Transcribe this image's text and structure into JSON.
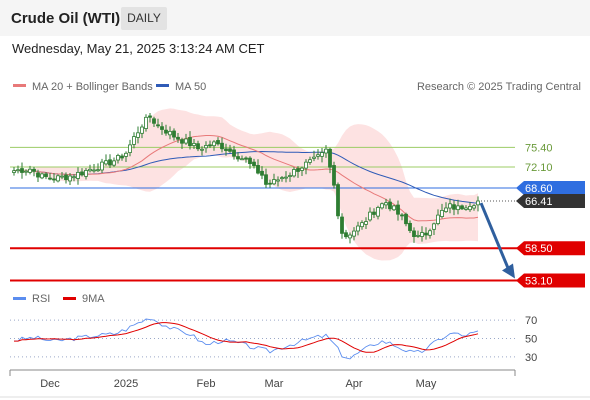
{
  "header": {
    "title": "Crude Oil (WTI)",
    "period": "DAILY",
    "datetime": "Wednesday, May 21, 2025 3:13:24 AM CET"
  },
  "legend": {
    "ma20": "MA 20 + Bollinger Bands",
    "ma50": "MA 50",
    "credit": "Research © 2025 Trading Central",
    "rsi": "RSI",
    "rsi_ma": "9MA"
  },
  "colors": {
    "candle": "#2e7d32",
    "band_fill": "#fde2e2",
    "ma20": "#e87979",
    "ma50": "#2f5bb7",
    "resistance": "#9ccc65",
    "support": "#e00000",
    "current": "#2f6ee0",
    "price_box": "#333333",
    "arrow": "#2f5f9e",
    "rsi": "#5b8def",
    "rsi_ma": "#e00000"
  },
  "chart_data": {
    "type": "candlestick",
    "x_ticks": [
      "Dec",
      "2025",
      "Feb",
      "Mar",
      "Apr",
      "May"
    ],
    "y_range": [
      51.5,
      83
    ],
    "price_levels": [
      {
        "label": "75.40",
        "value": 75.4,
        "kind": "resistance"
      },
      {
        "label": "72.10",
        "value": 72.1,
        "kind": "resistance"
      },
      {
        "label": "68.60",
        "value": 68.6,
        "kind": "pivot"
      },
      {
        "label": "66.41",
        "value": 66.41,
        "kind": "last"
      },
      {
        "label": "58.50",
        "value": 58.5,
        "kind": "support"
      },
      {
        "label": "53.10",
        "value": 53.1,
        "kind": "support"
      }
    ],
    "projection": {
      "from": 66.41,
      "to": 53.1
    },
    "price_anchors": [
      [
        0,
        71.5
      ],
      [
        4,
        71.8
      ],
      [
        7,
        70.5
      ],
      [
        10,
        70.2
      ],
      [
        14,
        70.6
      ],
      [
        17,
        71.2
      ],
      [
        20,
        72.0
      ],
      [
        23,
        72.6
      ],
      [
        26,
        73.5
      ],
      [
        28,
        74.5
      ],
      [
        30,
        77.0
      ],
      [
        32,
        79.2
      ],
      [
        34,
        80.5
      ],
      [
        36,
        79.0
      ],
      [
        38,
        78.2
      ],
      [
        40,
        77.3
      ],
      [
        42,
        76.6
      ],
      [
        44,
        76.0
      ],
      [
        46,
        75.2
      ],
      [
        48,
        75.6
      ],
      [
        50,
        76.0
      ],
      [
        52,
        75.6
      ],
      [
        54,
        74.8
      ],
      [
        56,
        74.0
      ],
      [
        58,
        73.2
      ],
      [
        60,
        71.8
      ],
      [
        62,
        70.8
      ],
      [
        63,
        69.2
      ],
      [
        65,
        69.6
      ],
      [
        67,
        70.4
      ],
      [
        69,
        71.0
      ],
      [
        71,
        71.8
      ],
      [
        73,
        72.6
      ],
      [
        75,
        73.2
      ],
      [
        77,
        74.1
      ],
      [
        78,
        74.8
      ],
      [
        80,
        69.0
      ],
      [
        81,
        64.5
      ],
      [
        82,
        61.2
      ],
      [
        83,
        60.6
      ],
      [
        85,
        61.5
      ],
      [
        87,
        62.5
      ],
      [
        89,
        64.0
      ],
      [
        91,
        65.5
      ],
      [
        93,
        66.2
      ],
      [
        95,
        65.0
      ],
      [
        97,
        63.5
      ],
      [
        99,
        61.5
      ],
      [
        101,
        60.3
      ],
      [
        103,
        61.0
      ],
      [
        105,
        63.0
      ],
      [
        107,
        64.6
      ],
      [
        109,
        65.5
      ],
      [
        111,
        65.2
      ],
      [
        113,
        65.8
      ],
      [
        115,
        66.2
      ],
      [
        116,
        66.41
      ]
    ],
    "rsi_ticks": [
      70,
      50,
      30
    ],
    "rsi_anchors": [
      [
        0,
        48
      ],
      [
        5,
        51
      ],
      [
        10,
        47
      ],
      [
        15,
        50
      ],
      [
        20,
        53
      ],
      [
        25,
        55
      ],
      [
        28,
        60
      ],
      [
        31,
        67
      ],
      [
        34,
        73
      ],
      [
        37,
        66
      ],
      [
        40,
        60
      ],
      [
        44,
        55
      ],
      [
        48,
        43
      ],
      [
        52,
        48
      ],
      [
        56,
        45
      ],
      [
        60,
        40
      ],
      [
        64,
        36
      ],
      [
        68,
        42
      ],
      [
        72,
        47
      ],
      [
        75,
        51
      ],
      [
        78,
        53
      ],
      [
        80,
        44
      ],
      [
        82,
        32
      ],
      [
        84,
        28
      ],
      [
        86,
        34
      ],
      [
        88,
        39
      ],
      [
        90,
        44
      ],
      [
        92,
        47
      ],
      [
        94,
        45
      ],
      [
        96,
        41
      ],
      [
        98,
        37
      ],
      [
        100,
        34
      ],
      [
        102,
        36
      ],
      [
        104,
        42
      ],
      [
        106,
        48
      ],
      [
        108,
        53
      ],
      [
        110,
        56
      ],
      [
        112,
        53
      ],
      [
        114,
        55
      ],
      [
        116,
        57
      ]
    ],
    "grid": false,
    "legend_position": "top"
  }
}
